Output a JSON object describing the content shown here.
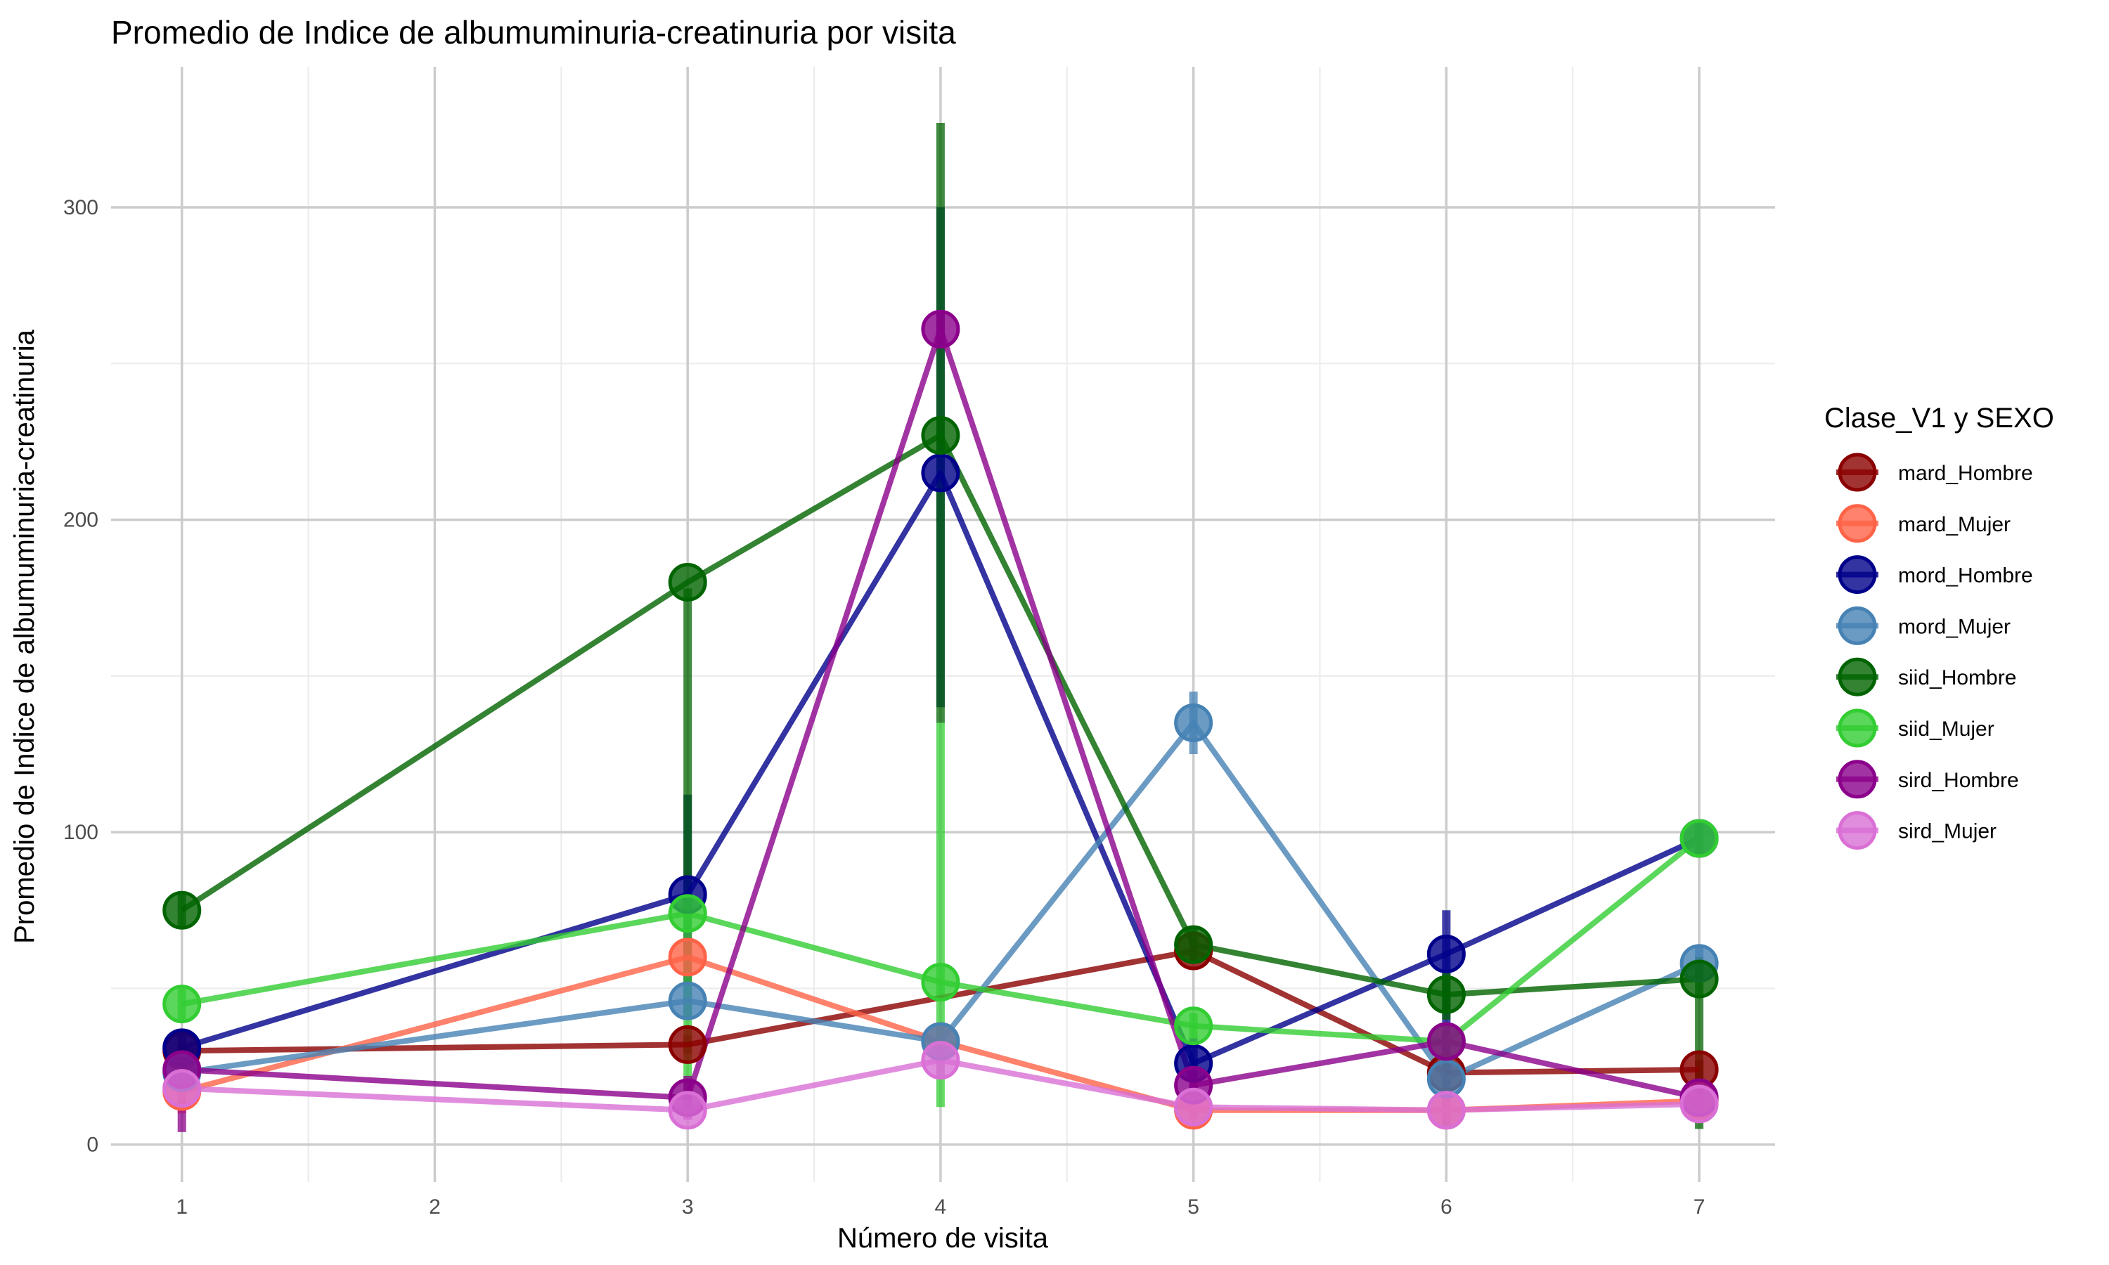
{
  "chart_data": {
    "type": "line",
    "title": "Promedio de Indice de albumuminuria-creatinuria por visita",
    "xlabel": "Número de visita",
    "ylabel": "Promedio de Indice de albumuminuria-creatinuria",
    "x_ticks": [
      1,
      2,
      3,
      4,
      5,
      6,
      7
    ],
    "y_ticks": [
      0,
      100,
      200,
      300
    ],
    "xlim": [
      0.72,
      7.3
    ],
    "ylim": [
      -12,
      345
    ],
    "grid": true,
    "legend": {
      "title": "Clase_V1 y SEXO",
      "position": "right"
    },
    "series": [
      {
        "name": "mard_Hombre",
        "color": "#8B0000",
        "x": [
          1,
          3,
          5,
          6,
          7
        ],
        "y": [
          30,
          32,
          62,
          23,
          24
        ],
        "err": [
          [
            1,
            28,
            32
          ],
          [
            3,
            29,
            35
          ],
          [
            5,
            58,
            66
          ],
          [
            6,
            20,
            26
          ],
          [
            7,
            21,
            27
          ]
        ]
      },
      {
        "name": "mard_Mujer",
        "color": "#FF6347",
        "x": [
          1,
          3,
          4,
          5,
          6,
          7
        ],
        "y": [
          17,
          60,
          33,
          11,
          11,
          14
        ],
        "err": [
          [
            1,
            10,
            24
          ],
          [
            3,
            52,
            68
          ],
          [
            4,
            28,
            38
          ],
          [
            5,
            8,
            14
          ],
          [
            6,
            8,
            14
          ],
          [
            7,
            11,
            17
          ]
        ]
      },
      {
        "name": "mord_Hombre",
        "color": "#00008B",
        "x": [
          1,
          3,
          4,
          5,
          6,
          7
        ],
        "y": [
          31,
          80,
          215,
          26,
          61,
          98
        ],
        "err": [
          [
            1,
            25,
            37
          ],
          [
            3,
            40,
            112
          ],
          [
            4,
            140,
            300
          ],
          [
            5,
            18,
            34
          ],
          [
            6,
            5,
            75
          ],
          [
            7,
            92,
            104
          ]
        ]
      },
      {
        "name": "mord_Mujer",
        "color": "#4682B4",
        "x": [
          1,
          3,
          4,
          5,
          6,
          7
        ],
        "y": [
          23,
          46,
          33,
          135,
          21,
          58
        ],
        "err": [
          [
            1,
            18,
            28
          ],
          [
            3,
            40,
            52
          ],
          [
            4,
            28,
            38
          ],
          [
            5,
            125,
            145
          ],
          [
            6,
            15,
            27
          ],
          [
            7,
            52,
            64
          ]
        ]
      },
      {
        "name": "siid_Hombre",
        "color": "#006400",
        "x": [
          1,
          3,
          4,
          5,
          6,
          7
        ],
        "y": [
          75,
          180,
          227,
          64,
          48,
          53
        ],
        "err": [
          [
            1,
            70,
            80
          ],
          [
            3,
            75,
            178
          ],
          [
            4,
            135,
            327
          ],
          [
            5,
            58,
            70
          ],
          [
            6,
            40,
            56
          ],
          [
            7,
            5,
            60
          ]
        ]
      },
      {
        "name": "siid_Mujer",
        "color": "#32CD32",
        "x": [
          1,
          3,
          4,
          5,
          6,
          7
        ],
        "y": [
          45,
          74,
          52,
          38,
          33,
          98
        ],
        "err": [
          [
            1,
            40,
            50
          ],
          [
            3,
            10,
            80
          ],
          [
            4,
            12,
            135
          ],
          [
            5,
            34,
            42
          ],
          [
            6,
            28,
            38
          ],
          [
            7,
            92,
            104
          ]
        ]
      },
      {
        "name": "sird_Hombre",
        "color": "#8B008B",
        "x": [
          1,
          3,
          4,
          5,
          6,
          7
        ],
        "y": [
          24,
          15,
          261,
          19,
          33,
          15
        ],
        "err": [
          [
            1,
            4,
            28
          ],
          [
            3,
            8,
            22
          ],
          [
            4,
            255,
            267
          ],
          [
            5,
            15,
            23
          ],
          [
            6,
            28,
            38
          ],
          [
            7,
            10,
            20
          ]
        ]
      },
      {
        "name": "sird_Mujer",
        "color": "#DA70D6",
        "x": [
          1,
          3,
          4,
          5,
          6,
          7
        ],
        "y": [
          18,
          11,
          27,
          12,
          11,
          13
        ],
        "err": [
          [
            1,
            14,
            22
          ],
          [
            3,
            8,
            14
          ],
          [
            4,
            22,
            32
          ],
          [
            5,
            9,
            15
          ],
          [
            6,
            8,
            14
          ],
          [
            7,
            10,
            16
          ]
        ]
      }
    ]
  }
}
